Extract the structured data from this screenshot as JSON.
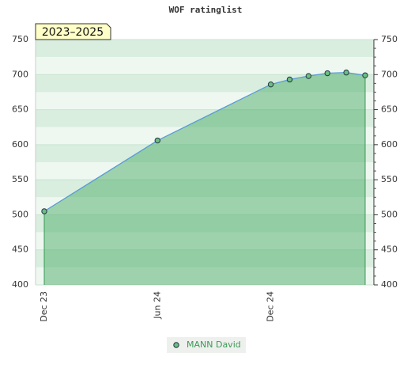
{
  "chart_data": {
    "type": "line",
    "title": "WOF ratinglist",
    "annotation": "2023–2025",
    "categories": [
      "Dec 23",
      null,
      null,
      null,
      null,
      null,
      "Jun 24",
      null,
      null,
      null,
      null,
      null,
      "Dec 24",
      null,
      null,
      null,
      null,
      null
    ],
    "series": [
      {
        "name": "MANN David",
        "color": "#3c9a55",
        "values": [
          505,
          null,
          null,
          null,
          null,
          null,
          606,
          null,
          null,
          null,
          null,
          null,
          686,
          693,
          698,
          702,
          703,
          699
        ]
      }
    ],
    "ylim": [
      400,
      750
    ],
    "yticks": [
      400,
      450,
      500,
      550,
      600,
      650,
      700,
      750
    ],
    "grid": true
  }
}
